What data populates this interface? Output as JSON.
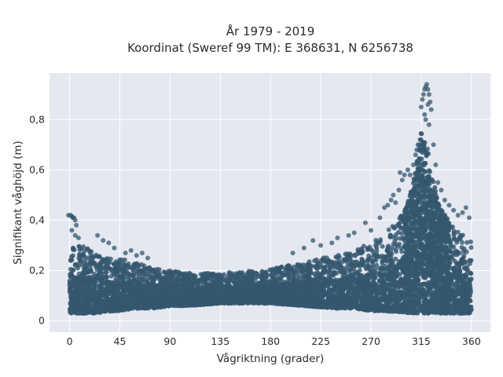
{
  "chart_data": {
    "type": "scatter",
    "title": "År 1979 - 2019",
    "subtitle": "Koordinat (Sweref 99 TM): E 368631, N 6256738",
    "xlabel": "Vågriktning (grader)",
    "ylabel": "Signifikant våghöjd (m)",
    "xlim": [
      -18,
      377
    ],
    "ylim": [
      -0.045,
      0.985
    ],
    "x_ticks": [
      0,
      45,
      90,
      135,
      180,
      225,
      270,
      315,
      360
    ],
    "x_tick_labels": [
      "0",
      "45",
      "90",
      "135",
      "180",
      "225",
      "270",
      "315",
      "360"
    ],
    "y_ticks": [
      0,
      0.2,
      0.4,
      0.6,
      0.8
    ],
    "y_tick_labels": [
      "0",
      "0,2",
      "0,4",
      "0,6",
      "0,8"
    ],
    "grid": true,
    "marker_color": "#34586f",
    "plot_background": "#e5e8f0",
    "envelope": {
      "x": [
        0,
        10,
        20,
        30,
        40,
        45,
        60,
        75,
        90,
        105,
        120,
        135,
        150,
        165,
        180,
        195,
        210,
        225,
        240,
        255,
        270,
        280,
        290,
        300,
        305,
        310,
        315,
        320,
        325,
        330,
        335,
        340,
        345,
        350,
        355,
        360
      ],
      "upper": [
        0.32,
        0.3,
        0.28,
        0.26,
        0.25,
        0.25,
        0.23,
        0.21,
        0.2,
        0.19,
        0.19,
        0.19,
        0.195,
        0.2,
        0.205,
        0.22,
        0.23,
        0.25,
        0.26,
        0.28,
        0.31,
        0.34,
        0.38,
        0.44,
        0.5,
        0.6,
        0.75,
        0.7,
        0.58,
        0.47,
        0.43,
        0.4,
        0.37,
        0.35,
        0.33,
        0.32
      ],
      "lower": [
        0.03,
        0.03,
        0.03,
        0.035,
        0.04,
        0.04,
        0.05,
        0.05,
        0.06,
        0.06,
        0.065,
        0.07,
        0.07,
        0.07,
        0.07,
        0.065,
        0.06,
        0.055,
        0.05,
        0.05,
        0.04,
        0.04,
        0.035,
        0.035,
        0.03,
        0.03,
        0.03,
        0.03,
        0.03,
        0.03,
        0.03,
        0.03,
        0.03,
        0.03,
        0.03,
        0.03
      ]
    },
    "outliers": {
      "x": [
        -1,
        1,
        2,
        3,
        4,
        5,
        6,
        2,
        5,
        8,
        315,
        316,
        317,
        318,
        319,
        320,
        321,
        322,
        323,
        324,
        318,
        321,
        319,
        322,
        305,
        308,
        310,
        312,
        303,
        300,
        296,
        298,
        311,
        314,
        326,
        328,
        330,
        333,
        336,
        340,
        344,
        348,
        352,
        355,
        358,
        285,
        288,
        290,
        292,
        295,
        270,
        265,
        278,
        282,
        250,
        255,
        240,
        235,
        225,
        218,
        210,
        200,
        25,
        30,
        35,
        40,
        50,
        55,
        60,
        65,
        70
      ],
      "y": [
        0.42,
        0.42,
        0.415,
        0.41,
        0.41,
        0.4,
        0.38,
        0.36,
        0.34,
        0.33,
        0.85,
        0.88,
        0.9,
        0.92,
        0.93,
        0.94,
        0.92,
        0.9,
        0.87,
        0.84,
        0.82,
        0.86,
        0.8,
        0.78,
        0.58,
        0.62,
        0.66,
        0.7,
        0.6,
        0.58,
        0.59,
        0.56,
        0.68,
        0.72,
        0.7,
        0.62,
        0.55,
        0.52,
        0.48,
        0.46,
        0.44,
        0.42,
        0.43,
        0.45,
        0.41,
        0.46,
        0.48,
        0.5,
        0.47,
        0.52,
        0.36,
        0.39,
        0.41,
        0.45,
        0.34,
        0.35,
        0.33,
        0.31,
        0.3,
        0.32,
        0.29,
        0.27,
        0.34,
        0.32,
        0.31,
        0.29,
        0.27,
        0.28,
        0.26,
        0.27,
        0.25
      ]
    }
  }
}
